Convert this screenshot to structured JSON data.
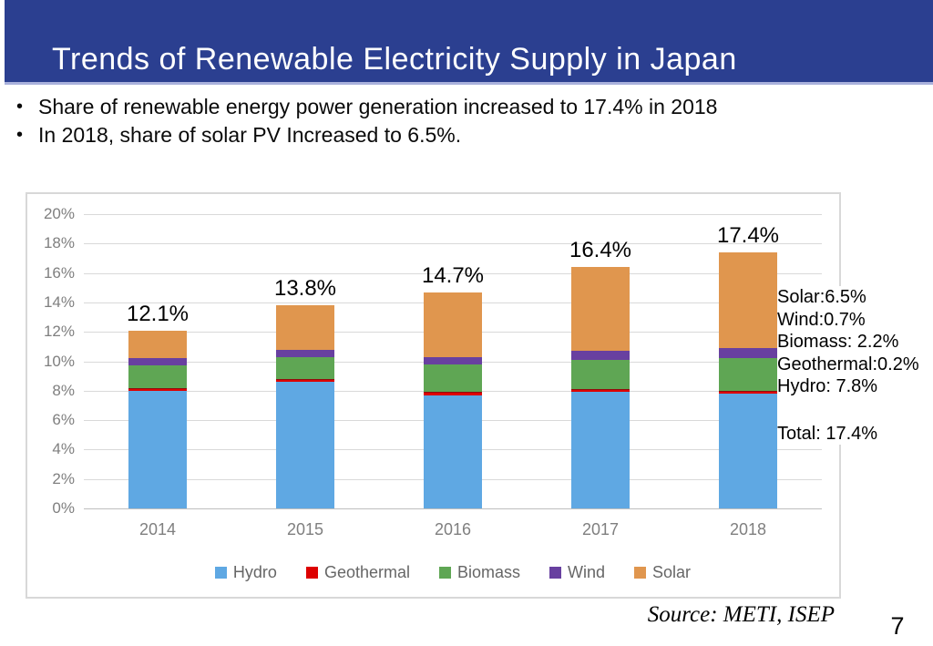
{
  "header": {
    "title": "Trends of Renewable Electricity Supply in Japan",
    "bg_color": "#2B3F90"
  },
  "bullets": [
    "Share of renewable energy power generation increased to 17.4% in 2018",
    "In 2018, share of solar PV Increased to 6.5%."
  ],
  "chart_data": {
    "type": "bar",
    "stacked": true,
    "title": "",
    "xlabel": "",
    "ylabel": "",
    "categories": [
      "2014",
      "2015",
      "2016",
      "2017",
      "2018"
    ],
    "series": [
      {
        "name": "Hydro",
        "color": "#5FA8E3",
        "values": [
          8.0,
          8.6,
          7.7,
          7.9,
          7.8
        ]
      },
      {
        "name": "Geothermal",
        "color": "#DD0000",
        "values": [
          0.2,
          0.2,
          0.2,
          0.2,
          0.2
        ]
      },
      {
        "name": "Biomass",
        "color": "#5FA654",
        "values": [
          1.5,
          1.5,
          1.9,
          2.0,
          2.2
        ]
      },
      {
        "name": "Wind",
        "color": "#6840A0",
        "values": [
          0.5,
          0.5,
          0.5,
          0.6,
          0.7
        ]
      },
      {
        "name": "Solar",
        "color": "#E0964E",
        "values": [
          1.9,
          3.0,
          4.4,
          5.7,
          6.5
        ]
      }
    ],
    "total_labels": [
      "12.1%",
      "13.8%",
      "14.7%",
      "16.4%",
      "17.4%"
    ],
    "ylim": [
      0,
      20
    ],
    "ytick_step": 2,
    "ytick_suffix": "%",
    "grid": true,
    "legend_position": "bottom"
  },
  "annotation": {
    "lines": [
      "Solar:6.5%",
      "Wind:0.7%",
      "Biomass: 2.2%",
      "Geothermal:0.2%",
      "Hydro: 7.8%"
    ],
    "total": "Total: 17.4%"
  },
  "source": "Source: METI, ISEP",
  "page_number": "7"
}
